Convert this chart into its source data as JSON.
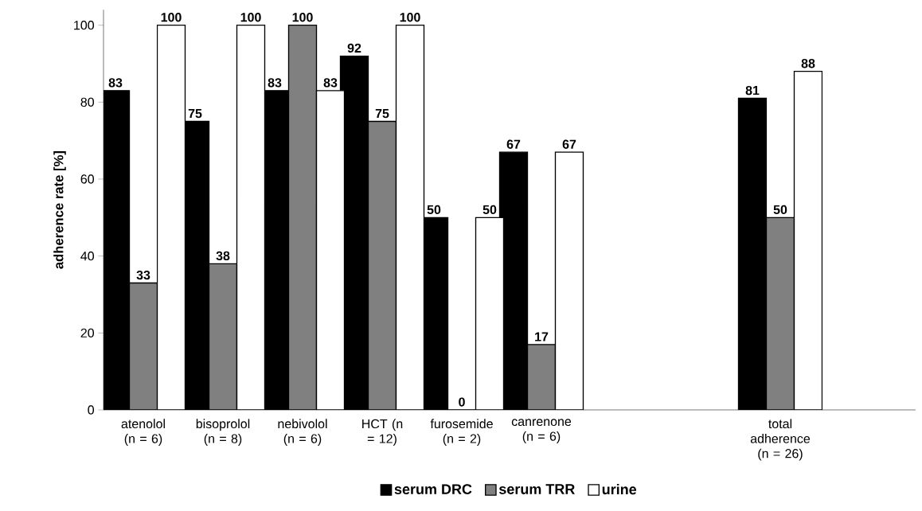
{
  "chart_data": {
    "type": "bar",
    "ylabel": "adherence rate [%]",
    "categories": [
      "atenolol (n = 6)",
      "bisoprolol (n = 8)",
      "nebivolol (n = 6)",
      "HCT (n = 12)",
      "furosemide (n = 2)",
      "canrenone (n = 6)",
      null,
      null,
      "total adherence (n = 26)"
    ],
    "series": [
      {
        "name": "serum DRC",
        "color": "#000000",
        "values": [
          83,
          75,
          83,
          92,
          50,
          67,
          null,
          null,
          81
        ]
      },
      {
        "name": "serum TRR",
        "color": "#808080",
        "values": [
          33,
          38,
          100,
          75,
          0,
          17,
          null,
          null,
          50
        ]
      },
      {
        "name": "urine",
        "color": "#ffffff",
        "values": [
          100,
          100,
          83,
          100,
          50,
          67,
          null,
          null,
          88
        ]
      }
    ],
    "ylim": [
      0,
      104
    ],
    "yticks": [
      0,
      20,
      40,
      60,
      80,
      100
    ],
    "data_labels": true,
    "legend": "bottom",
    "grid": false
  }
}
